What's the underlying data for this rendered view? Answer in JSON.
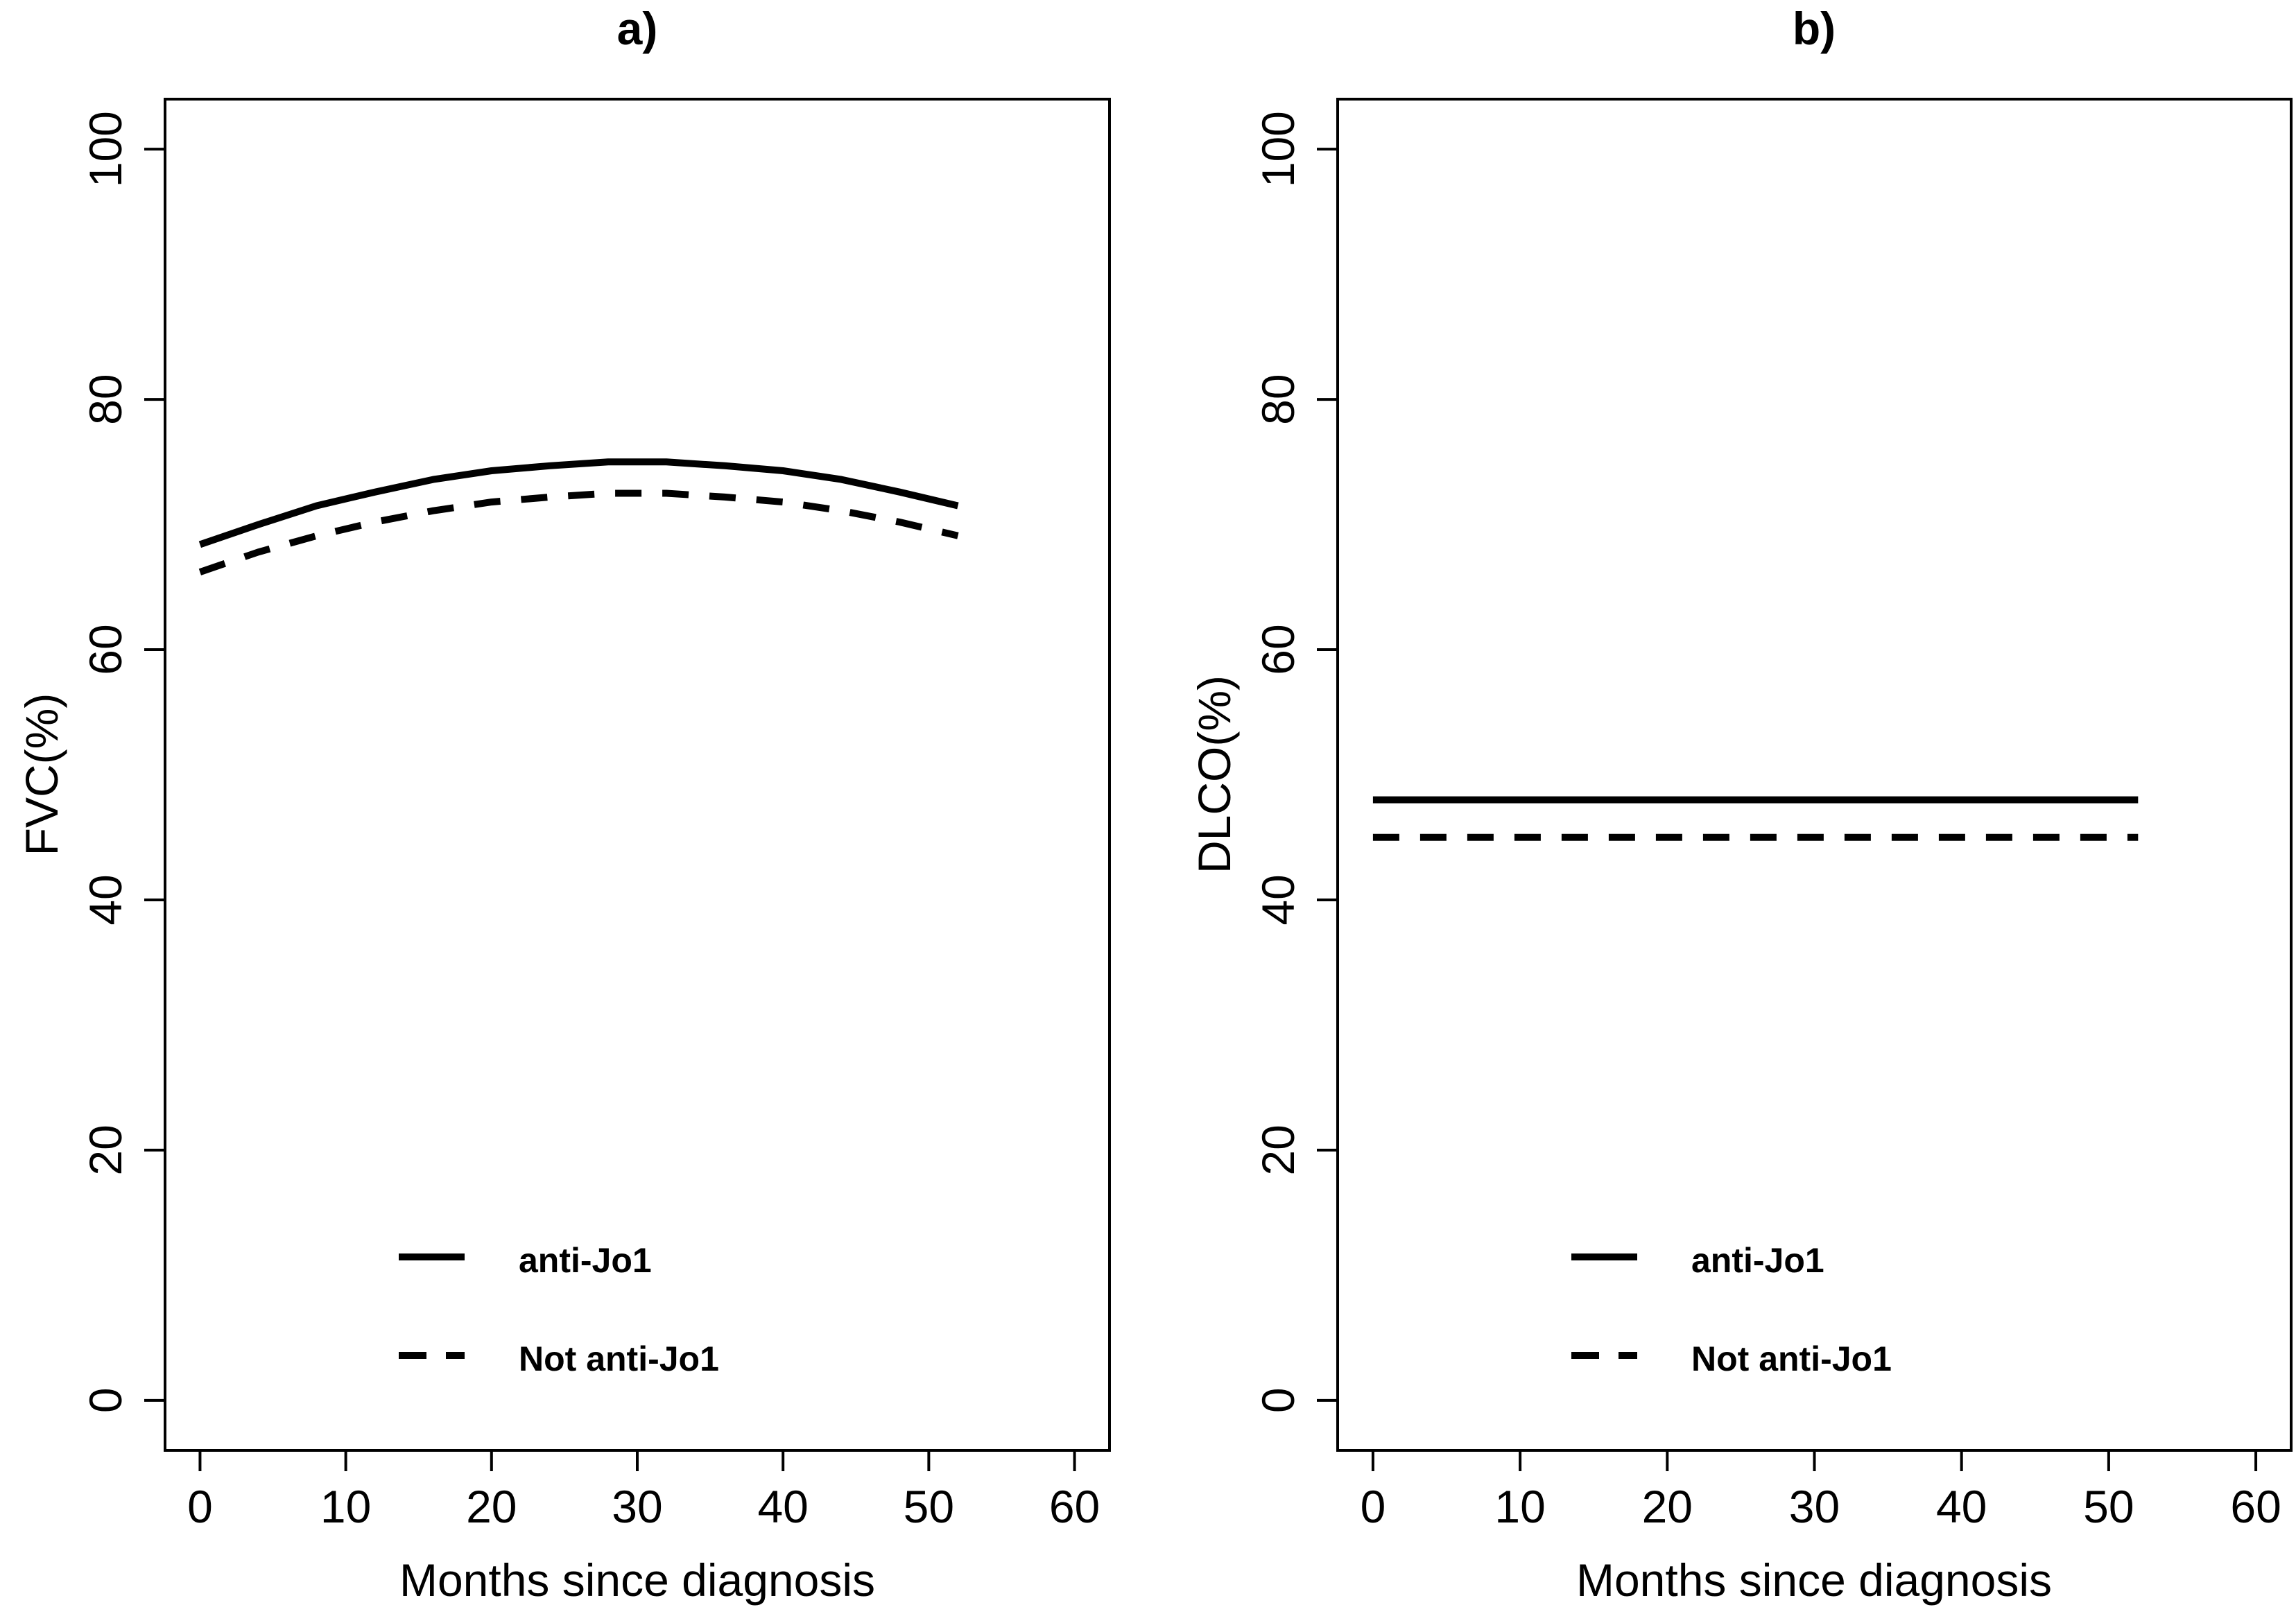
{
  "figure": {
    "background_color": "#ffffff",
    "foreground_color": "#000000"
  },
  "chart_data": [
    {
      "type": "line",
      "title": "a)",
      "xlabel": "Months since diagnosis",
      "ylabel": "FVC(%)",
      "xlim": [
        0,
        60
      ],
      "ylim": [
        0,
        100
      ],
      "xticks": [
        0,
        10,
        20,
        30,
        40,
        50,
        60
      ],
      "yticks": [
        0,
        20,
        40,
        60,
        80,
        100
      ],
      "grid": false,
      "legend_position": "inside-bottom-left",
      "x": [
        0,
        4,
        8,
        12,
        16,
        20,
        24,
        28,
        32,
        36,
        40,
        44,
        48,
        52
      ],
      "series": [
        {
          "name": "anti-Jo1",
          "line_style": "solid",
          "values": [
            68.4,
            70.0,
            71.5,
            72.6,
            73.6,
            74.3,
            74.7,
            75.0,
            75.0,
            74.7,
            74.3,
            73.6,
            72.6,
            71.5
          ]
        },
        {
          "name": "Not anti-Jo1",
          "line_style": "dashed",
          "values": [
            66.2,
            67.8,
            69.1,
            70.2,
            71.1,
            71.8,
            72.2,
            72.5,
            72.5,
            72.2,
            71.8,
            71.1,
            70.2,
            69.1
          ]
        }
      ]
    },
    {
      "type": "line",
      "title": "b)",
      "xlabel": "Months since diagnosis",
      "ylabel": "DLCO(%)",
      "xlim": [
        0,
        60
      ],
      "ylim": [
        0,
        100
      ],
      "xticks": [
        0,
        10,
        20,
        30,
        40,
        50,
        60
      ],
      "yticks": [
        0,
        20,
        40,
        60,
        80,
        100
      ],
      "grid": false,
      "legend_position": "inside-bottom-left",
      "x": [
        0,
        10,
        20,
        30,
        40,
        52
      ],
      "series": [
        {
          "name": "anti-Jo1",
          "line_style": "solid",
          "values": [
            48,
            48,
            48,
            48,
            48,
            48
          ]
        },
        {
          "name": "Not anti-Jo1",
          "line_style": "dashed",
          "values": [
            45,
            45,
            45,
            45,
            45,
            45
          ]
        }
      ]
    }
  ]
}
